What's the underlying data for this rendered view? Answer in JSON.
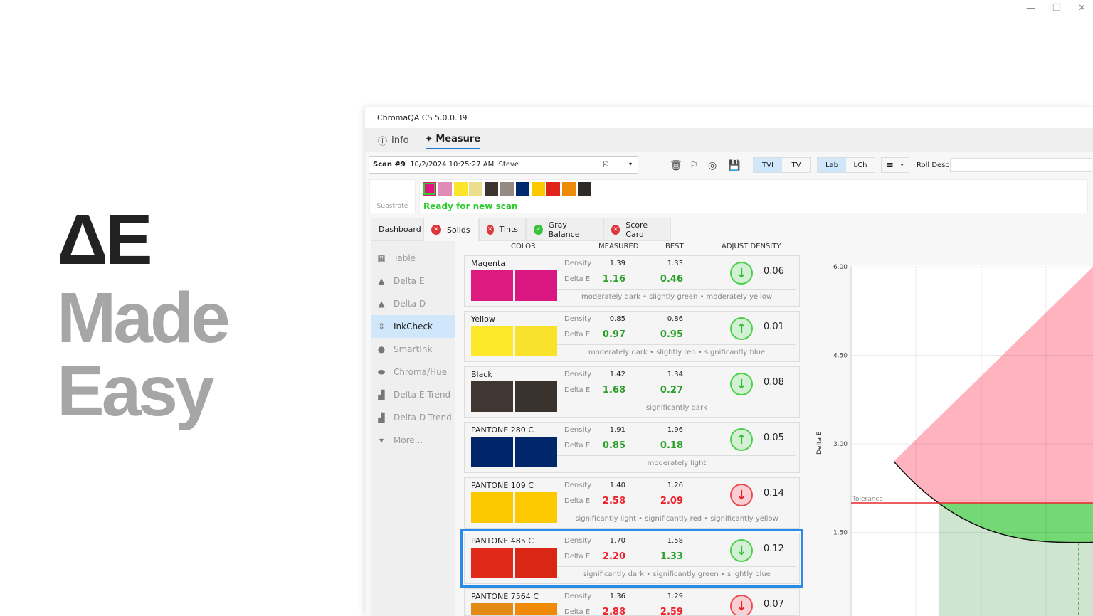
{
  "hero": {
    "line1": "ΔE",
    "line2": "Made",
    "line3": "Easy"
  },
  "window_controls": [
    "—",
    "❐",
    "✕"
  ],
  "app": {
    "title": "ChromaQA CS 5.0.0.39",
    "nav": [
      {
        "icon": "info-icon",
        "label": "Info"
      },
      {
        "icon": "crosshair-icon",
        "label": "Measure",
        "active": true
      }
    ],
    "scan": {
      "name": "Scan #9",
      "datetime": "10/2/2024 10:25:27 AM",
      "user": "Steve"
    },
    "toggles": {
      "tvi": "TVI",
      "tv": "TV",
      "lab": "Lab",
      "lch": "LCh",
      "selected": [
        "TVI",
        "Lab"
      ]
    },
    "roll_desc_label": "Roll Desc",
    "roll_desc_value": "",
    "substrate_label": "Substrate",
    "swatches": [
      "#e0147f",
      "#e08cb4",
      "#fde52a",
      "#ebdf8e",
      "#3d3530",
      "#958a83",
      "#002a70",
      "#fcc800",
      "#e2231a",
      "#ed8a0a",
      "#2e2a27"
    ],
    "status": "Ready for new scan",
    "tabs": [
      {
        "label": "Dashboard",
        "status": "none"
      },
      {
        "label": "Solids",
        "status": "fail",
        "active": true
      },
      {
        "label": "Tints",
        "status": "fail"
      },
      {
        "label": "Gray Balance",
        "status": "pass"
      },
      {
        "label": "Score Card",
        "status": "fail"
      }
    ],
    "sidebar": [
      {
        "icon": "table-icon",
        "label": "Table"
      },
      {
        "icon": "delta-e-icon",
        "label": "Delta E"
      },
      {
        "icon": "delta-d-icon",
        "label": "Delta D"
      },
      {
        "icon": "inkcheck-icon",
        "label": "InkCheck",
        "selected": true
      },
      {
        "icon": "drop-icon",
        "label": "SmartInk"
      },
      {
        "icon": "chroma-hue-icon",
        "label": "Chroma/Hue"
      },
      {
        "icon": "trend-icon",
        "label": "Delta E Trend"
      },
      {
        "icon": "trend-icon",
        "label": "Delta D Trend"
      },
      {
        "icon": "chevron-down-icon",
        "label": "More..."
      }
    ],
    "columns": {
      "color": "COLOR",
      "measured": "MEASURED",
      "best": "BEST",
      "adjust": "ADJUST DENSITY"
    },
    "row_labels": {
      "density": "Density",
      "delta_e": "Delta E"
    },
    "rows": [
      {
        "name": "Magenta",
        "colors": [
          "#dd1a80",
          "#da1680"
        ],
        "density": "1.39",
        "best_density": "1.33",
        "de": "1.16",
        "best_de": "0.46",
        "de_ok": true,
        "best_ok": true,
        "dir": "down",
        "dir_ok": true,
        "adjust": "0.06",
        "note": "moderately dark  •  slightly green  •  moderately yellow"
      },
      {
        "name": "Yellow",
        "colors": [
          "#fee82a",
          "#f8e22c"
        ],
        "density": "0.85",
        "best_density": "0.86",
        "de": "0.97",
        "best_de": "0.95",
        "de_ok": true,
        "best_ok": true,
        "dir": "up",
        "dir_ok": true,
        "adjust": "0.01",
        "note": "moderately dark  •  slightly red  •  significantly blue"
      },
      {
        "name": "Black",
        "colors": [
          "#403632",
          "#3a322d"
        ],
        "density": "1.42",
        "best_density": "1.34",
        "de": "1.68",
        "best_de": "0.27",
        "de_ok": true,
        "best_ok": true,
        "dir": "down",
        "dir_ok": true,
        "adjust": "0.08",
        "note": "significantly dark"
      },
      {
        "name": "PANTONE 280 C",
        "colors": [
          "#002468",
          "#00266c"
        ],
        "density": "1.91",
        "best_density": "1.96",
        "de": "0.85",
        "best_de": "0.18",
        "de_ok": true,
        "best_ok": true,
        "dir": "up",
        "dir_ok": true,
        "adjust": "0.05",
        "note": "moderately light"
      },
      {
        "name": "PANTONE 109 C",
        "colors": [
          "#fbc800",
          "#fdc900"
        ],
        "density": "1.40",
        "best_density": "1.26",
        "de": "2.58",
        "best_de": "2.09",
        "de_ok": false,
        "best_ok": false,
        "dir": "down",
        "dir_ok": false,
        "adjust": "0.14",
        "note": "significantly light  •  significantly red  •  significantly yellow"
      },
      {
        "name": "PANTONE 485 C",
        "colors": [
          "#e02919",
          "#da2614"
        ],
        "density": "1.70",
        "best_density": "1.58",
        "de": "2.20",
        "best_de": "1.33",
        "de_ok": false,
        "best_ok": true,
        "dir": "down",
        "dir_ok": true,
        "adjust": "0.12",
        "note": "significantly dark  •  significantly green  •  slightly blue",
        "highlighted": true
      },
      {
        "name": "PANTONE 7564 C",
        "colors": [
          "#e28a14",
          "#ee8a08"
        ],
        "density": "1.36",
        "best_density": "1.29",
        "de": "2.88",
        "best_de": "2.59",
        "de_ok": false,
        "best_ok": false,
        "dir": "down",
        "dir_ok": false,
        "adjust": "0.07",
        "note": ""
      }
    ]
  },
  "chart_data": {
    "type": "line",
    "ylabel": "Delta E",
    "yticks": [
      "6.00",
      "4.50",
      "3.00",
      "1.50"
    ],
    "ylim": [
      0,
      6
    ],
    "grid": true,
    "tolerance": 2.0,
    "tolerance_label": "Tolerance",
    "minimum_delta_e": 1.33,
    "colors": {
      "fail": "#ffb3bf",
      "pass": "#74d874",
      "pass_band": "#cfe5cf",
      "tolerance": "#e8262a"
    }
  }
}
